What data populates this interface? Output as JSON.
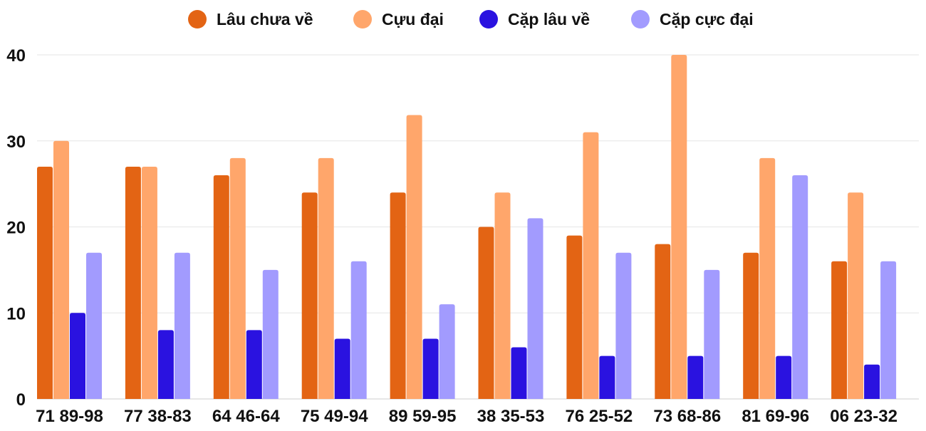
{
  "chart_data": {
    "type": "bar",
    "title": "",
    "xlabel": "",
    "ylabel": "",
    "ylim": [
      0,
      40
    ],
    "yticks": [
      0,
      10,
      20,
      30,
      40
    ],
    "grid": true,
    "legend_position": "top",
    "categories": [
      "71 89-98",
      "77 38-83",
      "64 46-64",
      "75 49-94",
      "89 59-95",
      "38 35-53",
      "76 25-52",
      "73 68-86",
      "81 69-96",
      "06 23-32"
    ],
    "series": [
      {
        "name": "Lâu chưa về",
        "color": "#e36414",
        "values": [
          27,
          27,
          26,
          24,
          24,
          20,
          19,
          18,
          17,
          16
        ]
      },
      {
        "name": "Cựu đại",
        "color": "#ffa66b",
        "values": [
          30,
          27,
          28,
          28,
          33,
          24,
          31,
          40,
          28,
          24
        ]
      },
      {
        "name": "Cặp lâu về",
        "color": "#2a12e0",
        "values": [
          10,
          8,
          8,
          7,
          7,
          6,
          5,
          5,
          5,
          4
        ]
      },
      {
        "name": "Cặp cực đại",
        "color": "#a29bfe",
        "values": [
          17,
          17,
          15,
          16,
          11,
          21,
          17,
          15,
          26,
          16
        ]
      }
    ]
  }
}
